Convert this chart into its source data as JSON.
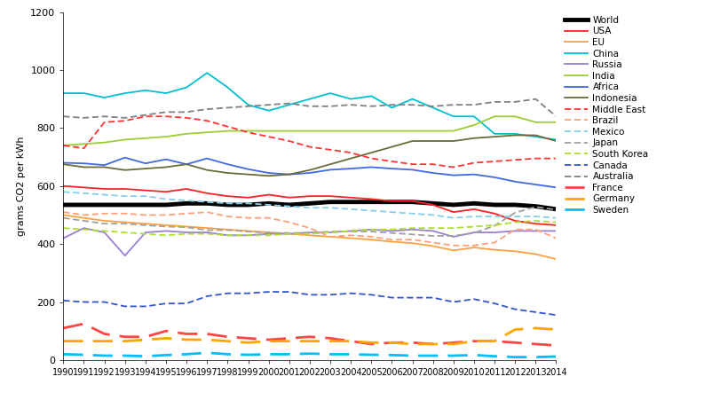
{
  "years": [
    1990,
    1991,
    1992,
    1993,
    1994,
    1995,
    1996,
    1997,
    1998,
    1999,
    2000,
    2001,
    2002,
    2003,
    2004,
    2005,
    2006,
    2007,
    2008,
    2009,
    2010,
    2011,
    2012,
    2013,
    2014
  ],
  "series": {
    "World": [
      535,
      535,
      535,
      535,
      535,
      535,
      540,
      540,
      535,
      535,
      540,
      535,
      540,
      545,
      545,
      545,
      545,
      545,
      540,
      535,
      540,
      535,
      535,
      530,
      520
    ],
    "USA": [
      600,
      595,
      590,
      590,
      585,
      580,
      590,
      575,
      565,
      560,
      570,
      560,
      565,
      565,
      560,
      555,
      548,
      548,
      535,
      510,
      520,
      505,
      480,
      470,
      465
    ],
    "EU": [
      500,
      490,
      480,
      475,
      470,
      465,
      460,
      455,
      450,
      445,
      440,
      435,
      430,
      425,
      420,
      415,
      408,
      403,
      393,
      378,
      388,
      380,
      375,
      365,
      348
    ],
    "China": [
      920,
      920,
      905,
      920,
      930,
      920,
      940,
      990,
      940,
      880,
      860,
      880,
      900,
      920,
      900,
      910,
      870,
      900,
      870,
      840,
      840,
      780,
      780,
      770,
      760
    ],
    "Russia": [
      420,
      455,
      440,
      360,
      440,
      445,
      440,
      440,
      430,
      430,
      435,
      435,
      440,
      440,
      445,
      450,
      445,
      450,
      445,
      425,
      440,
      440,
      445,
      445,
      445
    ],
    "India": [
      740,
      745,
      750,
      760,
      765,
      770,
      780,
      785,
      790,
      790,
      790,
      790,
      790,
      790,
      790,
      790,
      790,
      790,
      790,
      790,
      810,
      840,
      840,
      820,
      820
    ],
    "Africa": [
      680,
      678,
      672,
      698,
      678,
      692,
      675,
      695,
      675,
      658,
      645,
      640,
      645,
      656,
      660,
      665,
      660,
      656,
      645,
      637,
      640,
      630,
      615,
      605,
      595
    ],
    "Indonesia": [
      675,
      665,
      665,
      655,
      660,
      665,
      675,
      655,
      645,
      640,
      635,
      640,
      655,
      675,
      695,
      715,
      735,
      755,
      755,
      755,
      765,
      770,
      775,
      775,
      755
    ],
    "Middle East": [
      740,
      730,
      820,
      825,
      840,
      840,
      835,
      825,
      805,
      785,
      770,
      755,
      735,
      725,
      715,
      695,
      685,
      675,
      675,
      665,
      680,
      685,
      690,
      695,
      695
    ],
    "Brazil": [
      510,
      500,
      505,
      505,
      500,
      500,
      505,
      510,
      495,
      490,
      490,
      475,
      455,
      425,
      430,
      425,
      415,
      415,
      405,
      395,
      395,
      405,
      450,
      450,
      420
    ],
    "Mexico": [
      580,
      575,
      570,
      565,
      565,
      555,
      550,
      545,
      540,
      540,
      535,
      530,
      525,
      525,
      520,
      515,
      510,
      505,
      500,
      490,
      495,
      495,
      495,
      495,
      490
    ],
    "Japan": [
      490,
      480,
      470,
      470,
      465,
      460,
      458,
      448,
      448,
      443,
      438,
      438,
      438,
      443,
      443,
      443,
      438,
      433,
      428,
      428,
      438,
      463,
      508,
      528,
      518
    ],
    "South Korea": [
      455,
      450,
      445,
      440,
      435,
      430,
      435,
      435,
      430,
      430,
      430,
      435,
      435,
      440,
      445,
      450,
      450,
      455,
      455,
      455,
      460,
      465,
      475,
      480,
      475
    ],
    "Canada": [
      205,
      200,
      200,
      185,
      185,
      195,
      195,
      220,
      230,
      230,
      235,
      235,
      225,
      225,
      230,
      225,
      215,
      215,
      215,
      200,
      210,
      195,
      175,
      165,
      155
    ],
    "Australia": [
      840,
      835,
      840,
      835,
      845,
      855,
      855,
      865,
      870,
      875,
      880,
      885,
      875,
      875,
      880,
      875,
      880,
      880,
      875,
      880,
      880,
      890,
      890,
      900,
      840
    ],
    "France": [
      110,
      125,
      90,
      80,
      80,
      100,
      90,
      90,
      80,
      75,
      70,
      75,
      80,
      75,
      65,
      55,
      60,
      60,
      55,
      60,
      65,
      65,
      60,
      55,
      50
    ],
    "Germany": [
      65,
      65,
      65,
      65,
      70,
      75,
      70,
      70,
      65,
      60,
      65,
      65,
      65,
      65,
      65,
      60,
      60,
      55,
      55,
      55,
      65,
      65,
      105,
      110,
      105
    ],
    "Sweden": [
      20,
      18,
      15,
      15,
      13,
      17,
      20,
      25,
      20,
      18,
      20,
      20,
      22,
      20,
      20,
      18,
      17,
      15,
      15,
      15,
      17,
      13,
      10,
      10,
      12
    ]
  },
  "line_styles": {
    "World": {
      "color": "#000000",
      "lw": 3.5,
      "ls": "-",
      "dashes": null
    },
    "USA": {
      "color": "#FF2020",
      "lw": 1.3,
      "ls": "-",
      "dashes": null
    },
    "EU": {
      "color": "#FFA040",
      "lw": 1.3,
      "ls": "-",
      "dashes": null
    },
    "China": {
      "color": "#00C0D0",
      "lw": 1.3,
      "ls": "-",
      "dashes": null
    },
    "Russia": {
      "color": "#9B7FD4",
      "lw": 1.3,
      "ls": "-",
      "dashes": null
    },
    "India": {
      "color": "#9ACD32",
      "lw": 1.3,
      "ls": "-",
      "dashes": null
    },
    "Africa": {
      "color": "#4169E1",
      "lw": 1.3,
      "ls": "-",
      "dashes": null
    },
    "Indonesia": {
      "color": "#6B6B3A",
      "lw": 1.3,
      "ls": "-",
      "dashes": null
    },
    "Middle East": {
      "color": "#FF3333",
      "lw": 1.3,
      "ls": "--",
      "dashes": [
        4,
        2
      ]
    },
    "Brazil": {
      "color": "#FFA07A",
      "lw": 1.3,
      "ls": "--",
      "dashes": [
        4,
        2
      ]
    },
    "Mexico": {
      "color": "#87CEEB",
      "lw": 1.3,
      "ls": "--",
      "dashes": [
        4,
        2
      ]
    },
    "Japan": {
      "color": "#A0A0A0",
      "lw": 1.3,
      "ls": "--",
      "dashes": [
        4,
        2
      ]
    },
    "South Korea": {
      "color": "#ADDF2F",
      "lw": 1.3,
      "ls": "--",
      "dashes": [
        4,
        2
      ]
    },
    "Canada": {
      "color": "#3355CC",
      "lw": 1.3,
      "ls": "--",
      "dashes": [
        4,
        2
      ]
    },
    "Australia": {
      "color": "#808080",
      "lw": 1.3,
      "ls": "--",
      "dashes": [
        4,
        2
      ]
    },
    "France": {
      "color": "#FF4444",
      "lw": 2.0,
      "ls": "--",
      "dashes": [
        8,
        4
      ]
    },
    "Germany": {
      "color": "#FFA500",
      "lw": 2.0,
      "ls": "--",
      "dashes": [
        8,
        4
      ]
    },
    "Sweden": {
      "color": "#00BFFF",
      "lw": 2.0,
      "ls": "--",
      "dashes": [
        8,
        4
      ]
    }
  },
  "ylabel": "grams CO2 per kWh",
  "ylim": [
    0,
    1200
  ],
  "yticks": [
    0,
    200,
    400,
    600,
    800,
    1000,
    1200
  ],
  "legend_order": [
    "World",
    "USA",
    "EU",
    "China",
    "Russia",
    "India",
    "Africa",
    "Indonesia",
    "Middle East",
    "Brazil",
    "Mexico",
    "Japan",
    "South Korea",
    "Canada",
    "Australia",
    "France",
    "Germany",
    "Sweden"
  ],
  "background_color": "#FFFFFF"
}
